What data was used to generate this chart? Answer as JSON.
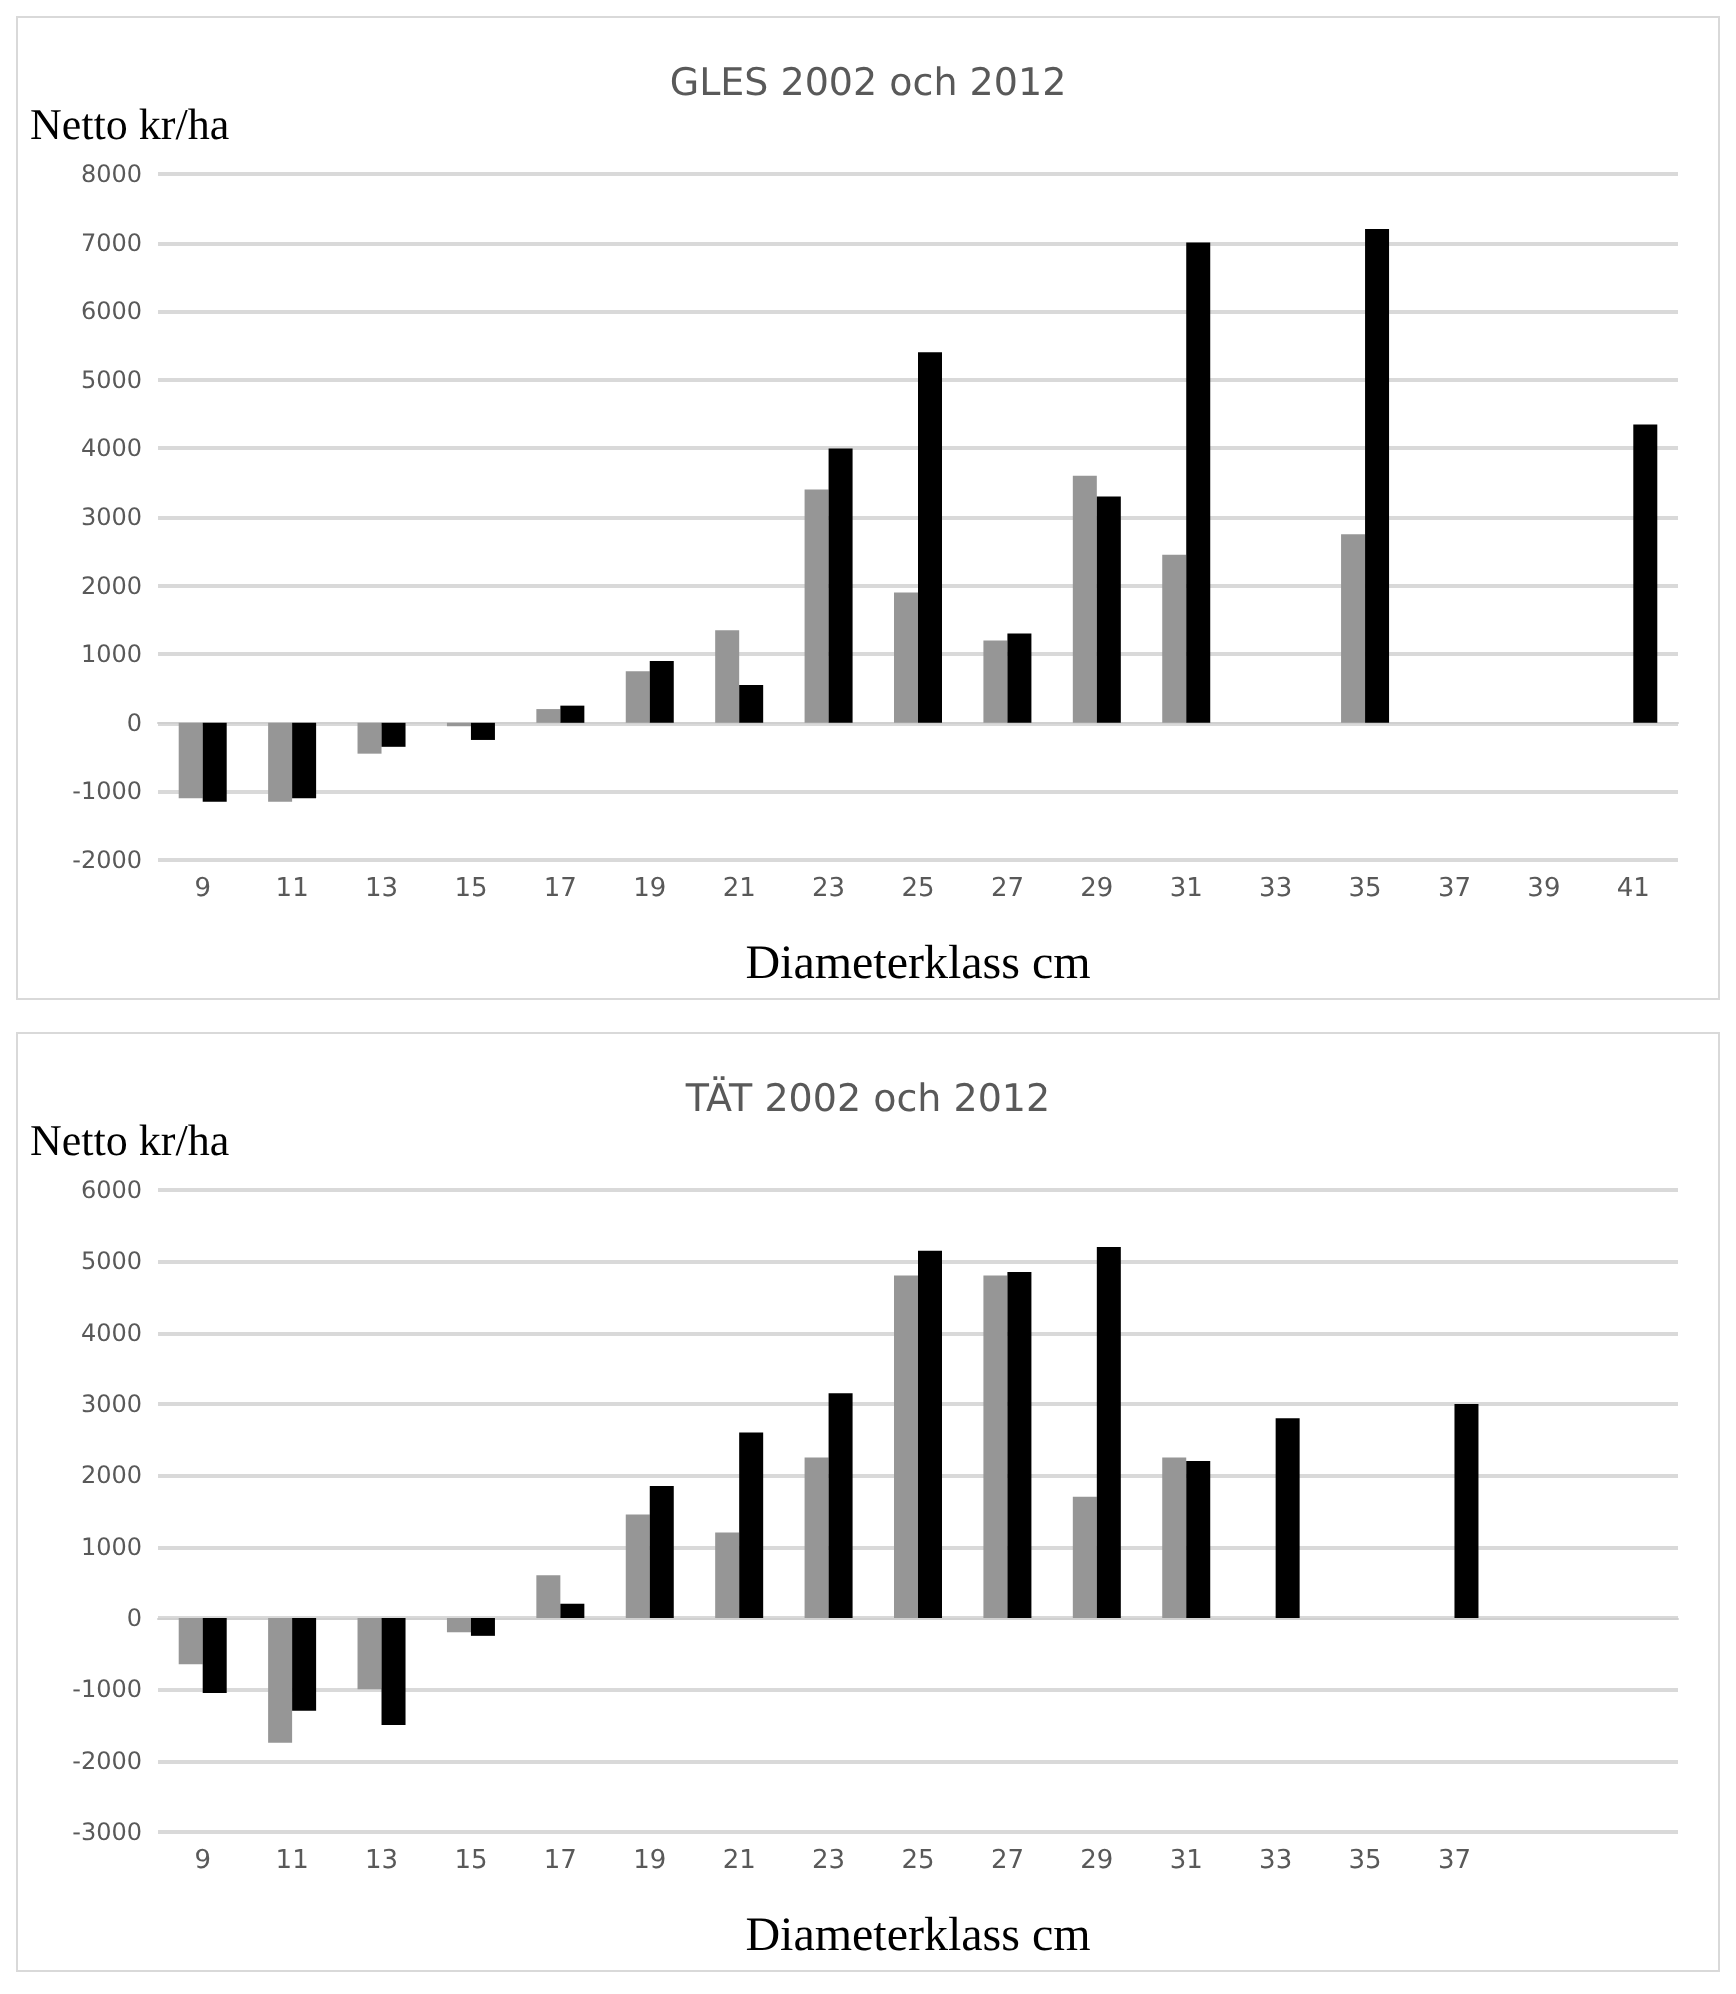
{
  "chart_data": [
    {
      "type": "bar",
      "title": "GLES 2002 och 2012",
      "xlabel": "Diameterklass cm",
      "ylabel": "Netto kr/ha",
      "categories": [
        "9",
        "11",
        "13",
        "15",
        "17",
        "19",
        "21",
        "23",
        "25",
        "27",
        "29",
        "31",
        "33",
        "35",
        "37",
        "39",
        "41"
      ],
      "series": [
        {
          "color": "#969696",
          "values": [
            -1100,
            -1150,
            -450,
            -50,
            200,
            750,
            1350,
            3400,
            1900,
            1200,
            3600,
            2450,
            null,
            2750,
            null,
            null,
            null
          ]
        },
        {
          "color": "#000000",
          "values": [
            -1150,
            -1100,
            -350,
            -250,
            250,
            900,
            550,
            4000,
            5400,
            1300,
            3300,
            7000,
            null,
            7200,
            null,
            null,
            4350
          ]
        }
      ],
      "ylim": [
        -2000,
        8000
      ],
      "yticks": [
        -2000,
        -1000,
        0,
        1000,
        2000,
        3000,
        4000,
        5000,
        6000,
        7000,
        8000
      ],
      "grid": "y"
    },
    {
      "type": "bar",
      "title": "TÄT 2002 och 2012",
      "xlabel": "Diameterklass cm",
      "ylabel": "Netto kr/ha",
      "categories": [
        "9",
        "11",
        "13",
        "15",
        "17",
        "19",
        "21",
        "23",
        "25",
        "27",
        "29",
        "31",
        "33",
        "35",
        "37",
        null,
        null
      ],
      "series": [
        {
          "color": "#969696",
          "values": [
            -650,
            -1750,
            -1000,
            -200,
            600,
            1450,
            1200,
            2250,
            4800,
            4800,
            1700,
            2250,
            null,
            null,
            null,
            null,
            null
          ]
        },
        {
          "color": "#000000",
          "values": [
            -1050,
            -1300,
            -1500,
            -250,
            200,
            1850,
            2600,
            3150,
            5150,
            4850,
            5200,
            2200,
            2800,
            null,
            3000,
            null,
            null
          ]
        }
      ],
      "ylim": [
        -3000,
        6000
      ],
      "yticks": [
        -3000,
        -2000,
        -1000,
        0,
        1000,
        2000,
        3000,
        4000,
        5000,
        6000
      ],
      "grid": "y"
    }
  ]
}
